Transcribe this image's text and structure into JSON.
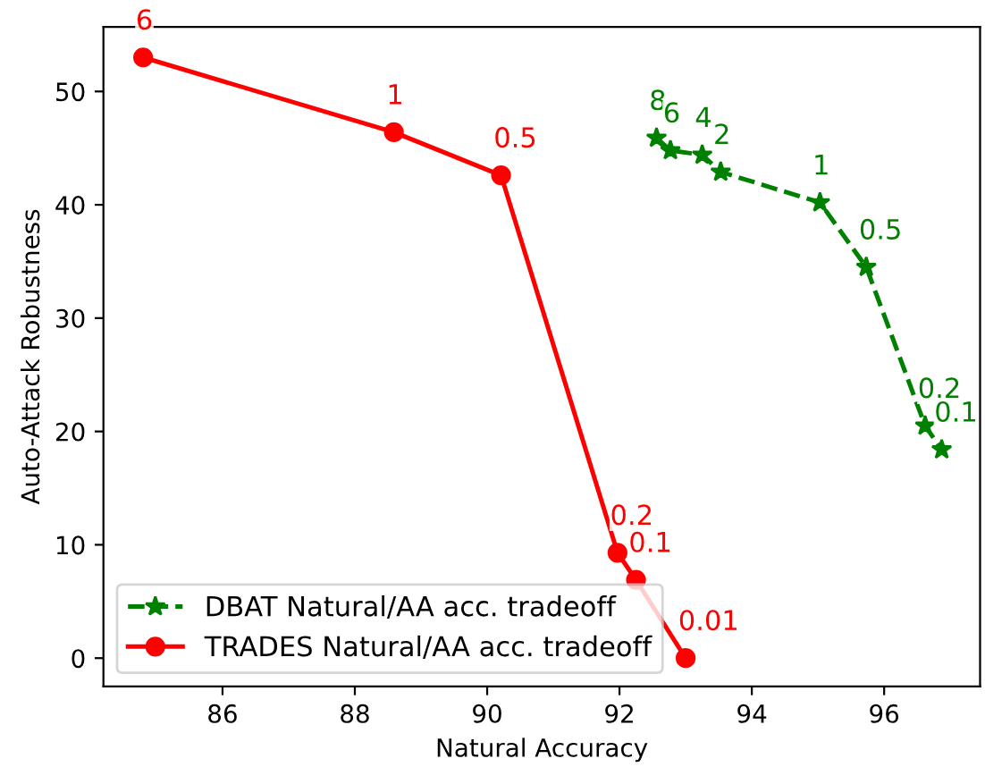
{
  "chart_data": {
    "type": "line",
    "xlabel": "Natural Accuracy",
    "ylabel": "Auto-Attack Robustness",
    "xlim": [
      84.2,
      97.45
    ],
    "ylim": [
      -2.5,
      55.7
    ],
    "xticks": [
      86,
      88,
      90,
      92,
      94,
      96
    ],
    "yticks": [
      0,
      10,
      20,
      30,
      40,
      50
    ],
    "grid": false,
    "legend": "bottom left",
    "series": [
      {
        "name": "DBAT Natural/AA acc. tradeoff",
        "color": "#008000",
        "marker": "star",
        "line_style": "dashed",
        "x": [
          92.56,
          92.77,
          93.25,
          93.53,
          95.03,
          95.73,
          96.62,
          96.87
        ],
        "values": [
          45.9,
          44.8,
          44.4,
          42.9,
          40.2,
          34.5,
          20.5,
          18.4
        ]
      },
      {
        "name": "TRADES Natural/AA acc. tradeoff",
        "color": "#ff0000",
        "marker": "circle",
        "line_style": "solid",
        "x": [
          84.8,
          88.59,
          90.21,
          91.97,
          92.25,
          93.0
        ],
        "values": [
          53.0,
          46.4,
          42.6,
          9.3,
          6.9,
          0.0
        ]
      }
    ],
    "annotations": [
      {
        "text": "8",
        "x": 92.56,
        "y": 45.9
      },
      {
        "text": "6",
        "x": 92.77,
        "y": 44.8
      },
      {
        "text": "4",
        "x": 93.25,
        "y": 44.4
      },
      {
        "text": "2",
        "x": 93.53,
        "y": 42.9
      },
      {
        "text": "1",
        "x": 95.03,
        "y": 40.2
      },
      {
        "text": "0.5",
        "x": 95.73,
        "y": 34.5
      },
      {
        "text": "0.2",
        "x": 96.62,
        "y": 20.5
      },
      {
        "text": "0.1",
        "x": 96.87,
        "y": 18.4
      },
      {
        "text": "6",
        "x": 84.8,
        "y": 53.0
      },
      {
        "text": "1",
        "x": 88.59,
        "y": 46.4
      },
      {
        "text": "0.5",
        "x": 90.21,
        "y": 42.6
      },
      {
        "text": "0.2",
        "x": 91.97,
        "y": 9.3
      },
      {
        "text": "0.1",
        "x": 92.25,
        "y": 6.9
      },
      {
        "text": "0.01",
        "x": 93.0,
        "y": 0.0
      }
    ]
  }
}
